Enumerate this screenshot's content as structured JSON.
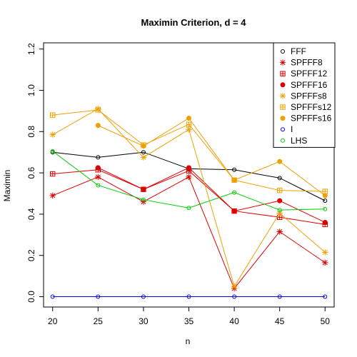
{
  "chart_data": {
    "type": "line",
    "title": "Maximin Criterion, d = 4",
    "xlabel": "n",
    "ylabel": "Maximin",
    "x": [
      20,
      25,
      30,
      35,
      40,
      45,
      50
    ],
    "xlim": [
      19,
      51
    ],
    "ylim": [
      -0.05,
      1.23
    ],
    "xticks": [
      20,
      25,
      30,
      35,
      40,
      45,
      50
    ],
    "yticks": [
      0.0,
      0.2,
      0.4,
      0.6,
      0.8,
      1.0,
      1.2
    ],
    "ytick_labels": [
      "0.0",
      "0.2",
      "0.4",
      "0.6",
      "0.8",
      "1.0",
      "1.2"
    ],
    "grid": false,
    "legend_position": "top-right",
    "series": [
      {
        "name": "FFF",
        "color": "#000000",
        "marker": "circle",
        "values": [
          0.7,
          0.675,
          0.7,
          0.62,
          0.615,
          0.575,
          0.465
        ]
      },
      {
        "name": "SPFFF8",
        "color": "#dd0000",
        "marker": "asterisk",
        "values": [
          0.49,
          0.58,
          0.46,
          0.58,
          0.04,
          0.315,
          0.165
        ]
      },
      {
        "name": "SPFFF12",
        "color": "#dd0000",
        "marker": "boxplus",
        "values": [
          0.595,
          0.615,
          0.52,
          0.61,
          0.415,
          0.385,
          0.35
        ]
      },
      {
        "name": "SPFFF16",
        "color": "#dd0000",
        "marker": "dot",
        "values": [
          null,
          0.625,
          0.52,
          0.625,
          0.415,
          0.465,
          0.36
        ]
      },
      {
        "name": "SPFFFs8",
        "color": "#f0a000",
        "marker": "asterisk",
        "values": [
          0.785,
          0.91,
          0.675,
          0.81,
          0.05,
          0.405,
          0.215
        ]
      },
      {
        "name": "SPFFFs12",
        "color": "#f0a000",
        "marker": "boxplus",
        "values": [
          0.88,
          0.905,
          0.735,
          0.835,
          0.565,
          0.515,
          0.51
        ]
      },
      {
        "name": "SPFFFs16",
        "color": "#f0a000",
        "marker": "dot",
        "values": [
          null,
          0.83,
          0.73,
          0.865,
          0.565,
          0.655,
          0.49
        ]
      },
      {
        "name": "I",
        "color": "#0000ee",
        "marker": "circle",
        "values": [
          0,
          0,
          0,
          0,
          0,
          0,
          0
        ]
      },
      {
        "name": "LHS",
        "color": "#00cc00",
        "marker": "circle",
        "values": [
          0.705,
          0.54,
          0.47,
          0.43,
          0.505,
          0.42,
          0.425
        ]
      }
    ]
  }
}
